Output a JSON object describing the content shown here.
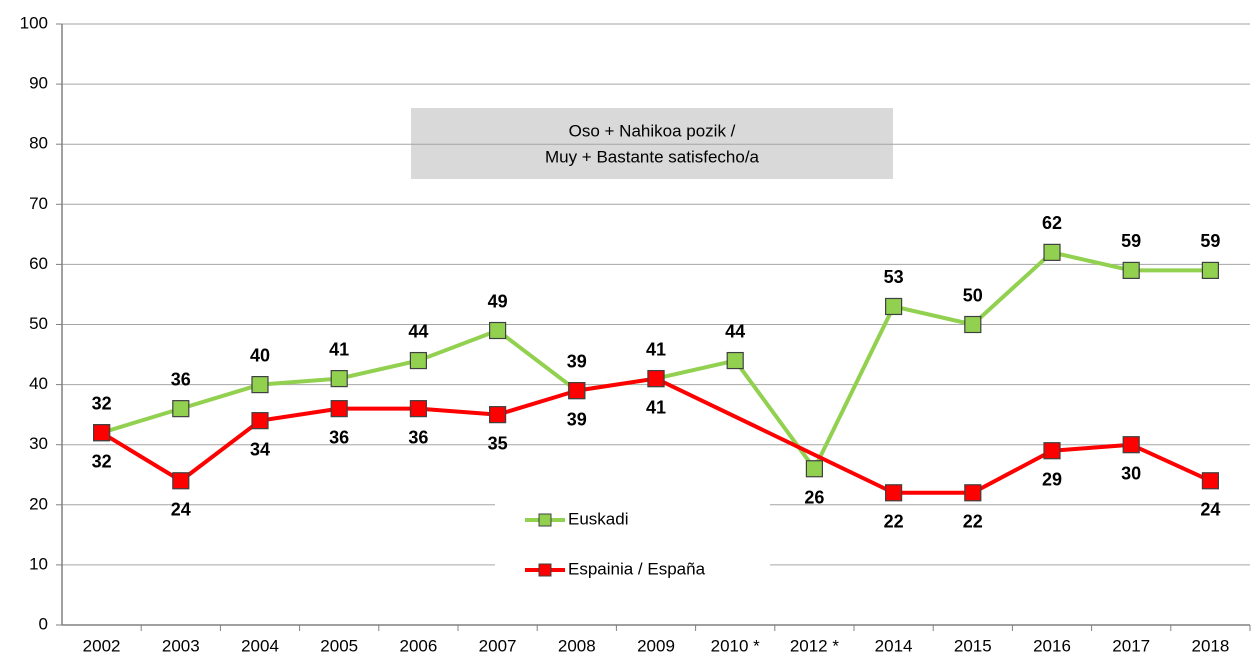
{
  "chart_data": {
    "type": "line",
    "categories": [
      "2002",
      "2003",
      "2004",
      "2005",
      "2006",
      "2007",
      "2008",
      "2009",
      "2010 *",
      "2012 *",
      "2014",
      "2015",
      "2016",
      "2017",
      "2018"
    ],
    "series": [
      {
        "name": "Euskadi",
        "color": "#92d050",
        "values": [
          32,
          36,
          40,
          41,
          44,
          49,
          39,
          41,
          44,
          26,
          53,
          50,
          62,
          59,
          59
        ]
      },
      {
        "name": "Espainia / España",
        "color": "#ff0000",
        "values": [
          32,
          24,
          34,
          36,
          36,
          35,
          39,
          41,
          null,
          null,
          22,
          22,
          29,
          30,
          24
        ]
      }
    ],
    "annotation": [
      "Oso  + Nahikoa  pozik  /",
      "Muy + Bastante  satisfecho/a"
    ],
    "ylim": [
      0,
      100
    ],
    "yticks": [
      0,
      10,
      20,
      30,
      40,
      50,
      60,
      70,
      80,
      90,
      100
    ],
    "grid": true
  }
}
